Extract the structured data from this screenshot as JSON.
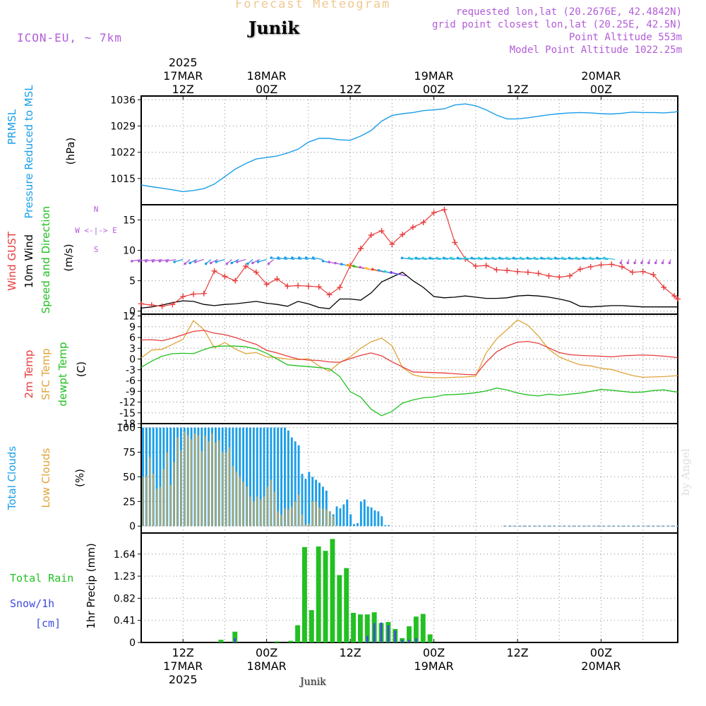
{
  "header": {
    "title": "Forecast Meteogram",
    "location": "Junik",
    "model": "ICON-EU, ~ 7km",
    "requested": "requested lon,lat (20.2676E, 42.4842N)",
    "gridpoint": "grid point closest lon,lat (20.25E, 42.5N)",
    "point_alt": "Point Altitude 553m",
    "model_alt": "Model Point Altitude 1022.25m",
    "footer_location": "Junik",
    "watermark": "by Angel"
  },
  "colors": {
    "blue": "#1a9ee8",
    "red": "#e83c3c",
    "black": "#000000",
    "green": "#22c022",
    "orange": "#e0a43a",
    "purple": "#b25cd8",
    "snow": "#3c4ce0",
    "title": "#f0c890"
  },
  "chart_data": [
    {
      "id": "time_axis",
      "type": "line",
      "top_labels": [
        [
          "2025",
          "17MAR",
          "12Z"
        ],
        [
          "18MAR",
          "00Z"
        ],
        [
          "12Z"
        ],
        [
          "19MAR",
          "00Z"
        ],
        [
          "12Z"
        ],
        [
          "20MAR",
          "00Z"
        ]
      ],
      "bottom_labels": [
        [
          "12Z",
          "17MAR",
          "2025"
        ],
        [
          "00Z",
          "18MAR"
        ],
        [
          "12Z"
        ],
        [
          "00Z",
          "19MAR"
        ],
        [
          "12Z"
        ],
        [
          "00Z",
          "20MAR"
        ]
      ]
    },
    {
      "id": "pressure",
      "type": "line",
      "ylabels": [
        "PRMSL",
        "Pressure Reduced to MSL",
        "(hPa)"
      ],
      "ylim": [
        1008,
        1037
      ],
      "yticks": [
        1015,
        1022,
        1029,
        1036
      ],
      "x": [
        0,
        3,
        6,
        9,
        12,
        15,
        18,
        21,
        24,
        27,
        30,
        33,
        36,
        39,
        42,
        45,
        48,
        51,
        54,
        57,
        60,
        63,
        66,
        69,
        72,
        75,
        78,
        81,
        84,
        87,
        90,
        93,
        96,
        99,
        102,
        105,
        108,
        111,
        114,
        117,
        120,
        123,
        126,
        129,
        132,
        135,
        138,
        141,
        144,
        147,
        150,
        153,
        154
      ],
      "values": [
        1013.3,
        1012.8,
        1012.4,
        1012.0,
        1011.5,
        1011.8,
        1012.3,
        1013.5,
        1015.5,
        1017.5,
        1019.0,
        1020.2,
        1020.6,
        1021.0,
        1021.8,
        1022.8,
        1024.7,
        1025.7,
        1025.7,
        1025.3,
        1025.2,
        1026.3,
        1027.8,
        1030.3,
        1031.8,
        1032.3,
        1032.6,
        1033.1,
        1033.3,
        1033.6,
        1034.6,
        1034.9,
        1034.4,
        1033.3,
        1031.9,
        1030.9,
        1030.9,
        1031.2,
        1031.6,
        1032.0,
        1032.3,
        1032.5,
        1032.6,
        1032.5,
        1032.3,
        1032.2,
        1032.4,
        1032.7,
        1032.6,
        1032.6,
        1032.5,
        1032.7,
        1032.9
      ]
    },
    {
      "id": "wind",
      "type": "line",
      "ylabels": [
        "Wind GUST",
        "10m Wind",
        "Speed and Direction",
        "(m/s)"
      ],
      "compass": [
        "N",
        "W <-|-> E",
        "S"
      ],
      "ylim": [
        -0.5,
        17.5
      ],
      "yticks": [
        0,
        5,
        10,
        15
      ],
      "x": [
        0,
        3,
        6,
        9,
        12,
        15,
        18,
        21,
        24,
        27,
        30,
        33,
        36,
        39,
        42,
        45,
        48,
        51,
        54,
        57,
        60,
        63,
        66,
        69,
        72,
        75,
        78,
        81,
        84,
        87,
        90,
        93,
        96,
        99,
        102,
        105,
        108,
        111,
        114,
        117,
        120,
        123,
        126,
        129,
        132,
        135,
        138,
        141,
        144,
        147,
        150,
        153,
        154
      ],
      "gust": [
        1.2,
        1.0,
        0.8,
        1.1,
        2.4,
        2.8,
        2.9,
        6.6,
        5.7,
        5.0,
        7.4,
        6.4,
        4.4,
        5.3,
        4.1,
        4.2,
        4.1,
        4.0,
        2.7,
        3.9,
        7.5,
        10.3,
        12.5,
        13.2,
        11.0,
        12.6,
        13.8,
        14.6,
        16.2,
        16.7,
        11.3,
        8.6,
        7.4,
        7.5,
        6.8,
        6.7,
        6.5,
        6.4,
        6.2,
        5.8,
        5.6,
        5.8,
        6.9,
        7.3,
        7.6,
        7.7,
        7.3,
        6.4,
        6.5,
        6.0,
        3.9,
        2.5,
        2.0
      ],
      "wind10m": [
        0.5,
        0.7,
        1.0,
        1.4,
        1.7,
        1.6,
        1.1,
        0.9,
        1.1,
        1.2,
        1.4,
        1.6,
        1.3,
        1.1,
        0.8,
        1.6,
        1.2,
        0.6,
        0.4,
        2.0,
        2.0,
        1.8,
        3.0,
        4.8,
        5.6,
        6.4,
        5.0,
        3.9,
        2.4,
        2.2,
        2.3,
        2.5,
        2.3,
        2.1,
        2.1,
        2.2,
        2.5,
        2.6,
        2.5,
        2.3,
        2.0,
        1.6,
        0.8,
        0.7,
        0.8,
        0.9,
        0.9,
        0.8,
        0.7,
        0.7,
        0.7,
        0.7,
        0.7
      ]
    },
    {
      "id": "temperature",
      "type": "line",
      "ylabels": [
        "2m Temp",
        "SFC Temp",
        "dewpt Temp",
        "(C)"
      ],
      "ylim": [
        -18,
        12.5
      ],
      "yticks": [
        -18,
        -15,
        -12,
        -9,
        -6,
        -3,
        0,
        3,
        6,
        9,
        12
      ],
      "x": [
        0,
        3,
        6,
        9,
        12,
        15,
        18,
        21,
        24,
        27,
        30,
        33,
        36,
        39,
        42,
        45,
        48,
        51,
        54,
        57,
        60,
        63,
        66,
        69,
        72,
        75,
        78,
        81,
        84,
        87,
        90,
        93,
        96,
        99,
        102,
        105,
        108,
        111,
        114,
        117,
        120,
        123,
        126,
        129,
        132,
        135,
        138,
        141,
        144,
        147,
        150,
        153,
        154
      ],
      "t2m": [
        5.3,
        5.4,
        5.1,
        5.8,
        6.8,
        7.7,
        8.0,
        7.2,
        6.8,
        6.0,
        5.0,
        4.1,
        2.4,
        1.7,
        0.8,
        0.0,
        -0.3,
        -0.4,
        -0.8,
        -0.9,
        0.1,
        1.0,
        1.7,
        0.9,
        -0.8,
        -2.2,
        -3.6,
        -3.7,
        -3.8,
        -3.9,
        -4.1,
        -4.3,
        -4.4,
        -0.9,
        2.0,
        3.6,
        4.7,
        4.9,
        4.4,
        3.1,
        1.8,
        1.2,
        1.0,
        0.9,
        0.8,
        0.6,
        0.9,
        1.0,
        1.1,
        1.0,
        0.8,
        0.5,
        0.3
      ],
      "tsfc": [
        0.3,
        2.5,
        2.7,
        4.1,
        5.5,
        10.7,
        8.2,
        3.1,
        4.6,
        2.8,
        1.5,
        1.8,
        0.6,
        0.4,
        0.0,
        -0.2,
        0.1,
        -1.9,
        -3.4,
        -1.0,
        0.6,
        3.0,
        4.8,
        5.8,
        3.7,
        -2.4,
        -4.4,
        -5.0,
        -5.2,
        -5.2,
        -5.1,
        -5.0,
        -4.8,
        1.7,
        5.6,
        8.2,
        10.9,
        9.4,
        6.4,
        2.7,
        0.6,
        -0.6,
        -1.6,
        -1.9,
        -2.6,
        -2.9,
        -3.8,
        -4.6,
        -5.1,
        -5.0,
        -4.9,
        -4.7,
        -4.6
      ],
      "dewpt": [
        -2.3,
        -0.6,
        0.8,
        1.5,
        1.6,
        1.5,
        2.6,
        3.5,
        3.6,
        3.6,
        3.4,
        2.8,
        1.6,
        0.0,
        -1.6,
        -1.9,
        -2.1,
        -2.4,
        -2.7,
        -4.9,
        -9.1,
        -10.6,
        -14.0,
        -15.8,
        -14.6,
        -12.3,
        -11.4,
        -10.8,
        -10.6,
        -10.0,
        -9.9,
        -9.7,
        -9.4,
        -8.9,
        -8.1,
        -8.6,
        -9.5,
        -10.0,
        -10.3,
        -9.8,
        -10.1,
        -9.8,
        -9.5,
        -9.0,
        -8.5,
        -8.7,
        -9.0,
        -9.3,
        -9.2,
        -8.8,
        -8.6,
        -9.1,
        -9.2
      ]
    },
    {
      "id": "clouds",
      "type": "bar",
      "ylabels": [
        "Total Clouds",
        "Low Clouds",
        "(%)"
      ],
      "ylim": [
        -7,
        104
      ],
      "yticks": [
        0,
        25,
        50,
        75,
        100
      ],
      "total": [
        100,
        100,
        100,
        100,
        100,
        100,
        100,
        100,
        100,
        100,
        100,
        100,
        100,
        100,
        100,
        100,
        100,
        100,
        100,
        100,
        100,
        100,
        100,
        100,
        100,
        100,
        100,
        100,
        100,
        100,
        100,
        100,
        100,
        100,
        100,
        100,
        100,
        100,
        100,
        100,
        100,
        100,
        97,
        90,
        86,
        82,
        53,
        48,
        55,
        50,
        47,
        44,
        40,
        36,
        15,
        12,
        20,
        18,
        22,
        27,
        12,
        2,
        3,
        25,
        27,
        20,
        19,
        16,
        15,
        10,
        1,
        1,
        0,
        0,
        0,
        0,
        0,
        0,
        0,
        0,
        0,
        0,
        0,
        0,
        0,
        0,
        0,
        0,
        0,
        0,
        0,
        0,
        0,
        0,
        0,
        0,
        0,
        0,
        0,
        0,
        0,
        0,
        0,
        0,
        0,
        0,
        0,
        0,
        0,
        0,
        0,
        0,
        0,
        0,
        0,
        0,
        0,
        0,
        0,
        0,
        0,
        0,
        0,
        0,
        0,
        0,
        0,
        0,
        0,
        0,
        0,
        0,
        0,
        0,
        0,
        0,
        0,
        0,
        0,
        0,
        0,
        0,
        0,
        0,
        0,
        0,
        0,
        0,
        0,
        0,
        0,
        0,
        0,
        0,
        0
      ],
      "low": [
        50,
        51,
        70,
        53,
        38,
        40,
        58,
        75,
        42,
        65,
        90,
        77,
        96,
        92,
        88,
        94,
        92,
        76,
        92,
        86,
        94,
        85,
        87,
        75,
        75,
        80,
        61,
        55,
        50,
        45,
        40,
        30,
        25,
        30,
        27,
        30,
        40,
        47,
        35,
        15,
        12,
        18,
        17,
        20,
        25,
        32,
        12,
        2,
        3,
        25,
        25,
        19,
        18,
        17,
        15,
        10,
        1,
        0,
        0,
        0,
        0,
        0,
        0,
        0,
        0,
        0,
        0,
        0,
        0,
        0,
        0,
        0,
        0,
        0,
        0,
        0,
        0,
        0,
        0,
        0,
        0,
        0,
        0,
        0,
        0,
        0,
        0,
        0,
        0,
        0,
        0,
        0,
        0,
        0,
        0,
        0,
        0,
        0,
        0,
        0,
        0,
        0,
        0,
        0,
        0,
        0,
        0,
        0,
        0,
        0,
        0,
        0,
        0,
        0,
        0,
        0,
        0,
        0,
        0,
        0,
        0,
        0,
        0,
        0,
        0,
        0,
        0,
        0,
        0,
        0,
        0,
        0,
        0,
        0,
        0,
        0,
        0,
        0,
        0,
        0,
        0,
        0,
        0,
        0,
        0,
        0,
        0,
        0,
        0,
        0,
        0,
        0,
        0,
        0,
        0
      ]
    },
    {
      "id": "precip",
      "type": "bar",
      "ylabels": [
        "Total  Rain",
        "Snow/1h",
        "[cm]",
        "1hr Precip (mm)"
      ],
      "ylim": [
        0,
        2.03
      ],
      "yticks": [
        0,
        0.41,
        0.82,
        1.23,
        1.64
      ],
      "rain": [
        0,
        0,
        0,
        0,
        0,
        0,
        0,
        0,
        0,
        0,
        0,
        0.05,
        0,
        0.2,
        0,
        0,
        0,
        0,
        0,
        0.02,
        0,
        0.03,
        0.32,
        1.77,
        0.6,
        1.78,
        1.7,
        1.92,
        1.25,
        1.38,
        0.55,
        0.52,
        0.52,
        0.56,
        0.36,
        0.38,
        0.25,
        0.08,
        0.3,
        0.48,
        0.53,
        0.15
      ],
      "snow": [
        0,
        0,
        0,
        0,
        0,
        0,
        0,
        0,
        0,
        0,
        0,
        0,
        0,
        0.08,
        0,
        0,
        0,
        0,
        0,
        0,
        0,
        0,
        0,
        0,
        0,
        0,
        0,
        0,
        0,
        0,
        0,
        0,
        0.12,
        0.36,
        0.37,
        0.32,
        0.22,
        0.05,
        0.05,
        0.08,
        0,
        0
      ]
    }
  ]
}
